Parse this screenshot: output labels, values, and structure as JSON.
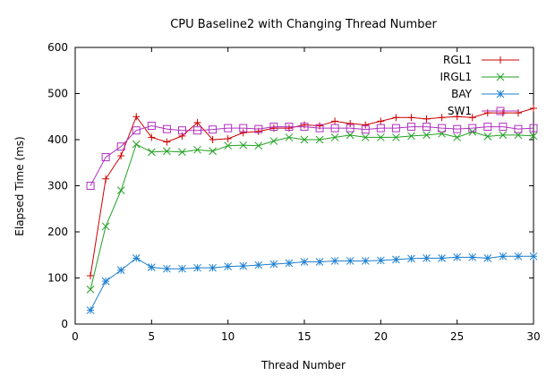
{
  "chart_data": {
    "type": "line",
    "title": "CPU Baseline2 with Changing Thread Number",
    "xlabel": "Thread Number",
    "ylabel": "Elapsed Time (ms)",
    "xlim": [
      0,
      30
    ],
    "ylim": [
      0,
      600
    ],
    "xticks": [
      0,
      5,
      10,
      15,
      20,
      25,
      30
    ],
    "yticks": [
      0,
      100,
      200,
      300,
      400,
      500,
      600
    ],
    "grid": false,
    "legend_position": "top-right",
    "x": [
      1,
      2,
      3,
      4,
      5,
      6,
      7,
      8,
      9,
      10,
      11,
      12,
      13,
      14,
      15,
      16,
      17,
      18,
      19,
      20,
      21,
      22,
      23,
      24,
      25,
      26,
      27,
      28,
      29,
      30
    ],
    "series": [
      {
        "name": "RGL1",
        "color": "#cc0000",
        "marker": "plus",
        "values": [
          105,
          315,
          365,
          450,
          405,
          395,
          408,
          437,
          400,
          402,
          415,
          418,
          425,
          425,
          432,
          430,
          440,
          435,
          432,
          440,
          448,
          448,
          445,
          448,
          450,
          448,
          458,
          458,
          458,
          468
        ]
      },
      {
        "name": "IRGL1",
        "color": "#22a022",
        "marker": "cross",
        "values": [
          75,
          212,
          290,
          390,
          373,
          375,
          373,
          378,
          375,
          387,
          388,
          387,
          397,
          405,
          400,
          400,
          405,
          410,
          405,
          405,
          405,
          408,
          410,
          413,
          405,
          417,
          407,
          410,
          410,
          408
        ]
      },
      {
        "name": "BAY",
        "color": "#1e7fd0",
        "marker": "star",
        "values": [
          30,
          93,
          117,
          143,
          123,
          120,
          120,
          122,
          122,
          125,
          126,
          128,
          130,
          132,
          135,
          135,
          137,
          137,
          137,
          138,
          140,
          142,
          143,
          143,
          145,
          145,
          143,
          147,
          147,
          147
        ]
      },
      {
        "name": "SW1",
        "color": "#b030c0",
        "marker": "square",
        "values": [
          300,
          362,
          385,
          420,
          430,
          423,
          420,
          420,
          422,
          425,
          425,
          423,
          428,
          428,
          428,
          425,
          425,
          425,
          422,
          425,
          425,
          428,
          428,
          425,
          423,
          425,
          428,
          428,
          423,
          425
        ]
      }
    ]
  }
}
